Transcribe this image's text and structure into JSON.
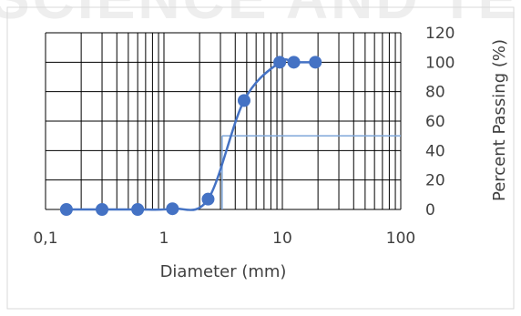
{
  "watermark": "SCIENCE AND TECHN",
  "chart_data": {
    "type": "scatter",
    "xscale": "log",
    "xlim": [
      0.1,
      100
    ],
    "ylim": [
      0,
      120
    ],
    "xlabel": "Diameter (mm)",
    "ylabel": "Percent Passing (%)",
    "x_ticks": [
      {
        "value": 0.1,
        "label": "0,1"
      },
      {
        "value": 1,
        "label": "1"
      },
      {
        "value": 10,
        "label": "10"
      },
      {
        "value": 100,
        "label": "100"
      }
    ],
    "y_ticks": [
      0,
      20,
      40,
      60,
      80,
      100,
      120
    ],
    "grid": true,
    "series": [
      {
        "color": "#4472c4",
        "markers": true,
        "smooth": true,
        "points": [
          {
            "x": 0.15,
            "y": 0
          },
          {
            "x": 0.3,
            "y": 0
          },
          {
            "x": 0.6,
            "y": 0
          },
          {
            "x": 1.18,
            "y": 0.5
          },
          {
            "x": 2.36,
            "y": 7
          },
          {
            "x": 4.75,
            "y": 74
          },
          {
            "x": 9.5,
            "y": 100
          },
          {
            "x": 12.5,
            "y": 100
          },
          {
            "x": 19,
            "y": 100
          }
        ]
      }
    ],
    "reference_lines": [
      {
        "color": "#7fa7d9",
        "x": 3.1,
        "y": 50
      }
    ]
  }
}
